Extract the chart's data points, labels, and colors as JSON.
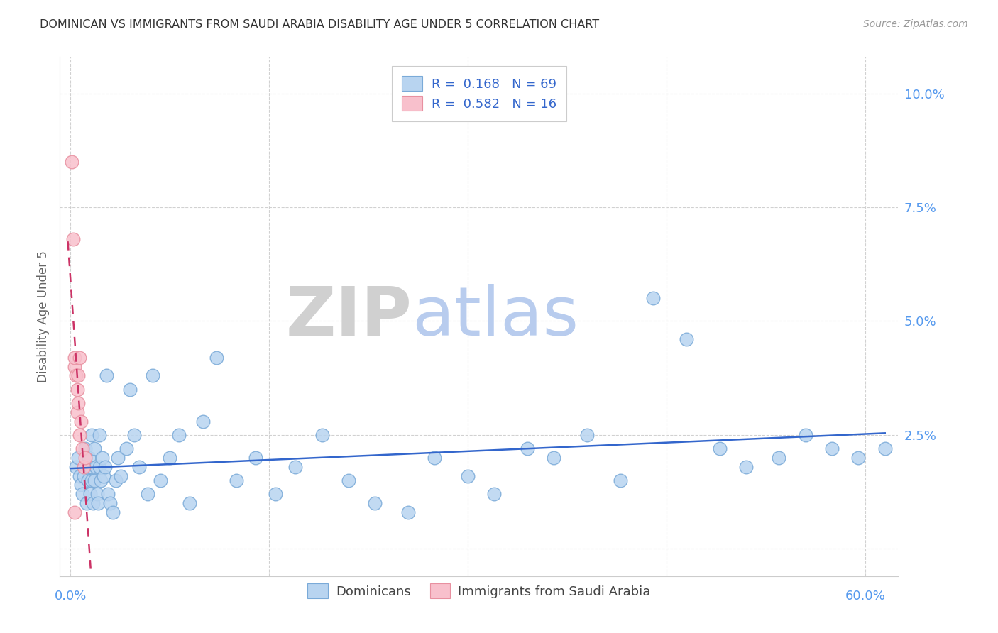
{
  "title": "DOMINICAN VS IMMIGRANTS FROM SAUDI ARABIA DISABILITY AGE UNDER 5 CORRELATION CHART",
  "source": "Source: ZipAtlas.com",
  "ylabel": "Disability Age Under 5",
  "watermark_zip": "ZIP",
  "watermark_atlas": "atlas",
  "legend1_label": "Dominicans",
  "legend2_label": "Immigrants from Saudi Arabia",
  "R1": "0.168",
  "N1": "69",
  "R2": "0.582",
  "N2": "16",
  "color1_face": "#b8d4f0",
  "color1_edge": "#7aaad8",
  "color2_face": "#f8c0cc",
  "color2_edge": "#e890a0",
  "trendline1_color": "#3366cc",
  "trendline2_color": "#cc3366",
  "yticks": [
    0.0,
    0.025,
    0.05,
    0.075,
    0.1
  ],
  "ytick_labels": [
    "",
    "2.5%",
    "5.0%",
    "7.5%",
    "10.0%"
  ],
  "xtick_positions": [
    0.0,
    0.15,
    0.3,
    0.45,
    0.6
  ],
  "xlim": [
    -0.008,
    0.625
  ],
  "ylim": [
    -0.006,
    0.108
  ],
  "background_color": "#ffffff",
  "grid_color": "#cccccc",
  "title_color": "#333333",
  "axis_tick_color": "#5599ee",
  "ylabel_color": "#666666",
  "legend_text_color": "#3366cc",
  "watermark_zip_color": "#d0d0d0",
  "watermark_atlas_color": "#b8ccee",
  "dom_x": [
    0.004,
    0.006,
    0.007,
    0.008,
    0.009,
    0.01,
    0.011,
    0.012,
    0.013,
    0.014,
    0.015,
    0.015,
    0.016,
    0.016,
    0.017,
    0.018,
    0.018,
    0.019,
    0.02,
    0.021,
    0.022,
    0.022,
    0.023,
    0.024,
    0.025,
    0.026,
    0.027,
    0.028,
    0.03,
    0.032,
    0.034,
    0.036,
    0.038,
    0.042,
    0.045,
    0.048,
    0.052,
    0.058,
    0.062,
    0.068,
    0.075,
    0.082,
    0.09,
    0.1,
    0.11,
    0.125,
    0.14,
    0.155,
    0.17,
    0.19,
    0.21,
    0.23,
    0.255,
    0.275,
    0.3,
    0.32,
    0.345,
    0.365,
    0.39,
    0.415,
    0.44,
    0.465,
    0.49,
    0.51,
    0.535,
    0.555,
    0.575,
    0.595,
    0.615
  ],
  "dom_y": [
    0.018,
    0.02,
    0.016,
    0.014,
    0.012,
    0.016,
    0.022,
    0.01,
    0.015,
    0.02,
    0.018,
    0.012,
    0.025,
    0.015,
    0.01,
    0.022,
    0.015,
    0.018,
    0.012,
    0.01,
    0.025,
    0.018,
    0.015,
    0.02,
    0.016,
    0.018,
    0.038,
    0.012,
    0.01,
    0.008,
    0.015,
    0.02,
    0.016,
    0.022,
    0.035,
    0.025,
    0.018,
    0.012,
    0.038,
    0.015,
    0.02,
    0.025,
    0.01,
    0.028,
    0.042,
    0.015,
    0.02,
    0.012,
    0.018,
    0.025,
    0.015,
    0.01,
    0.008,
    0.02,
    0.016,
    0.012,
    0.022,
    0.02,
    0.025,
    0.015,
    0.055,
    0.046,
    0.022,
    0.018,
    0.02,
    0.025,
    0.022,
    0.02,
    0.022
  ],
  "sau_x": [
    0.001,
    0.002,
    0.003,
    0.003,
    0.004,
    0.005,
    0.005,
    0.006,
    0.006,
    0.007,
    0.007,
    0.008,
    0.009,
    0.01,
    0.011,
    0.003
  ],
  "sau_y": [
    0.085,
    0.068,
    0.04,
    0.042,
    0.038,
    0.035,
    0.03,
    0.032,
    0.038,
    0.042,
    0.025,
    0.028,
    0.022,
    0.018,
    0.02,
    0.008
  ]
}
